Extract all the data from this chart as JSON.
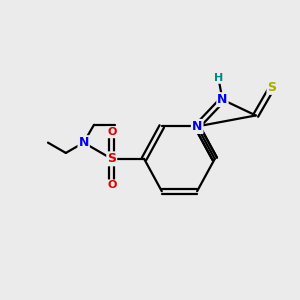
{
  "background_color": "#ebebeb",
  "atom_colors": {
    "C": "#000000",
    "N": "#0000ee",
    "S_sul": "#dd0000",
    "S_thio": "#aaaa00",
    "O": "#dd0000",
    "H": "#008888"
  },
  "figsize": [
    3.0,
    3.0
  ],
  "dpi": 100,
  "lw": 1.6,
  "fontsize": 9
}
